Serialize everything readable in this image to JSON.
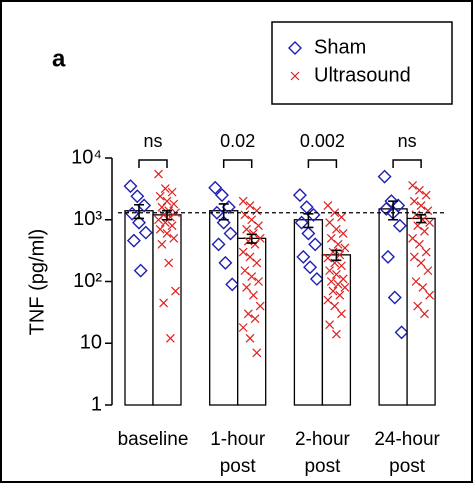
{
  "chart_data": {
    "type": "bar",
    "panel_label": "a",
    "y_label": "TNF (pg/ml)",
    "log_scale": true,
    "ylim": [
      1,
      10000
    ],
    "yticks": [
      1,
      10,
      {
        "value": 100,
        "label": "10²"
      },
      {
        "value": 1000,
        "label": "10³"
      },
      {
        "value": 10000,
        "label": "10⁴"
      }
    ],
    "categories": [
      [
        "baseline"
      ],
      [
        "1-hour",
        "post"
      ],
      [
        "2-hour",
        "post"
      ],
      [
        "24-hour",
        "post"
      ]
    ],
    "reference_line": 1300,
    "annotations": [
      "ns",
      "0.02",
      "0.002",
      "ns"
    ],
    "legend": "top-right",
    "series": [
      {
        "name": "Sham",
        "color": "#1f1fb4",
        "marker": "diamond",
        "values": [
          1400,
          1400,
          1000,
          1500
        ],
        "errors": [
          350,
          400,
          250,
          500
        ],
        "points": [
          [
            3500,
            2400,
            1700,
            1250,
            900,
            620,
            460,
            150
          ],
          [
            3300,
            2500,
            1600,
            1300,
            900,
            600,
            400,
            200,
            90
          ],
          [
            2500,
            1600,
            1200,
            900,
            600,
            400,
            250,
            170,
            110
          ],
          [
            5000,
            2000,
            1700,
            1500,
            1300,
            800,
            250,
            55,
            15
          ]
        ]
      },
      {
        "name": "Ultrasound",
        "color": "#e02020",
        "marker": "cross",
        "values": [
          1200,
          500,
          270,
          1050
        ],
        "errors": [
          200,
          80,
          50,
          150
        ],
        "points": [
          [
            5500,
            3200,
            2800,
            2400,
            2000,
            1800,
            1600,
            1400,
            1300,
            1200,
            1100,
            1000,
            900,
            800,
            700,
            600,
            500,
            400,
            200,
            70,
            45,
            12
          ],
          [
            2000,
            1700,
            1400,
            1200,
            1000,
            800,
            700,
            600,
            500,
            450,
            400,
            300,
            250,
            200,
            150,
            120,
            100,
            80,
            60,
            40,
            30,
            25,
            18,
            12,
            7
          ],
          [
            1700,
            1300,
            1100,
            900,
            700,
            600,
            500,
            400,
            350,
            300,
            270,
            240,
            200,
            180,
            150,
            130,
            110,
            100,
            90,
            80,
            70,
            60,
            50,
            40,
            30,
            20,
            14
          ],
          [
            3600,
            3000,
            2500,
            2000,
            1700,
            1400,
            1200,
            1000,
            900,
            800,
            650,
            500,
            400,
            300,
            250,
            200,
            150,
            100,
            80,
            60,
            40,
            30
          ]
        ]
      }
    ]
  }
}
